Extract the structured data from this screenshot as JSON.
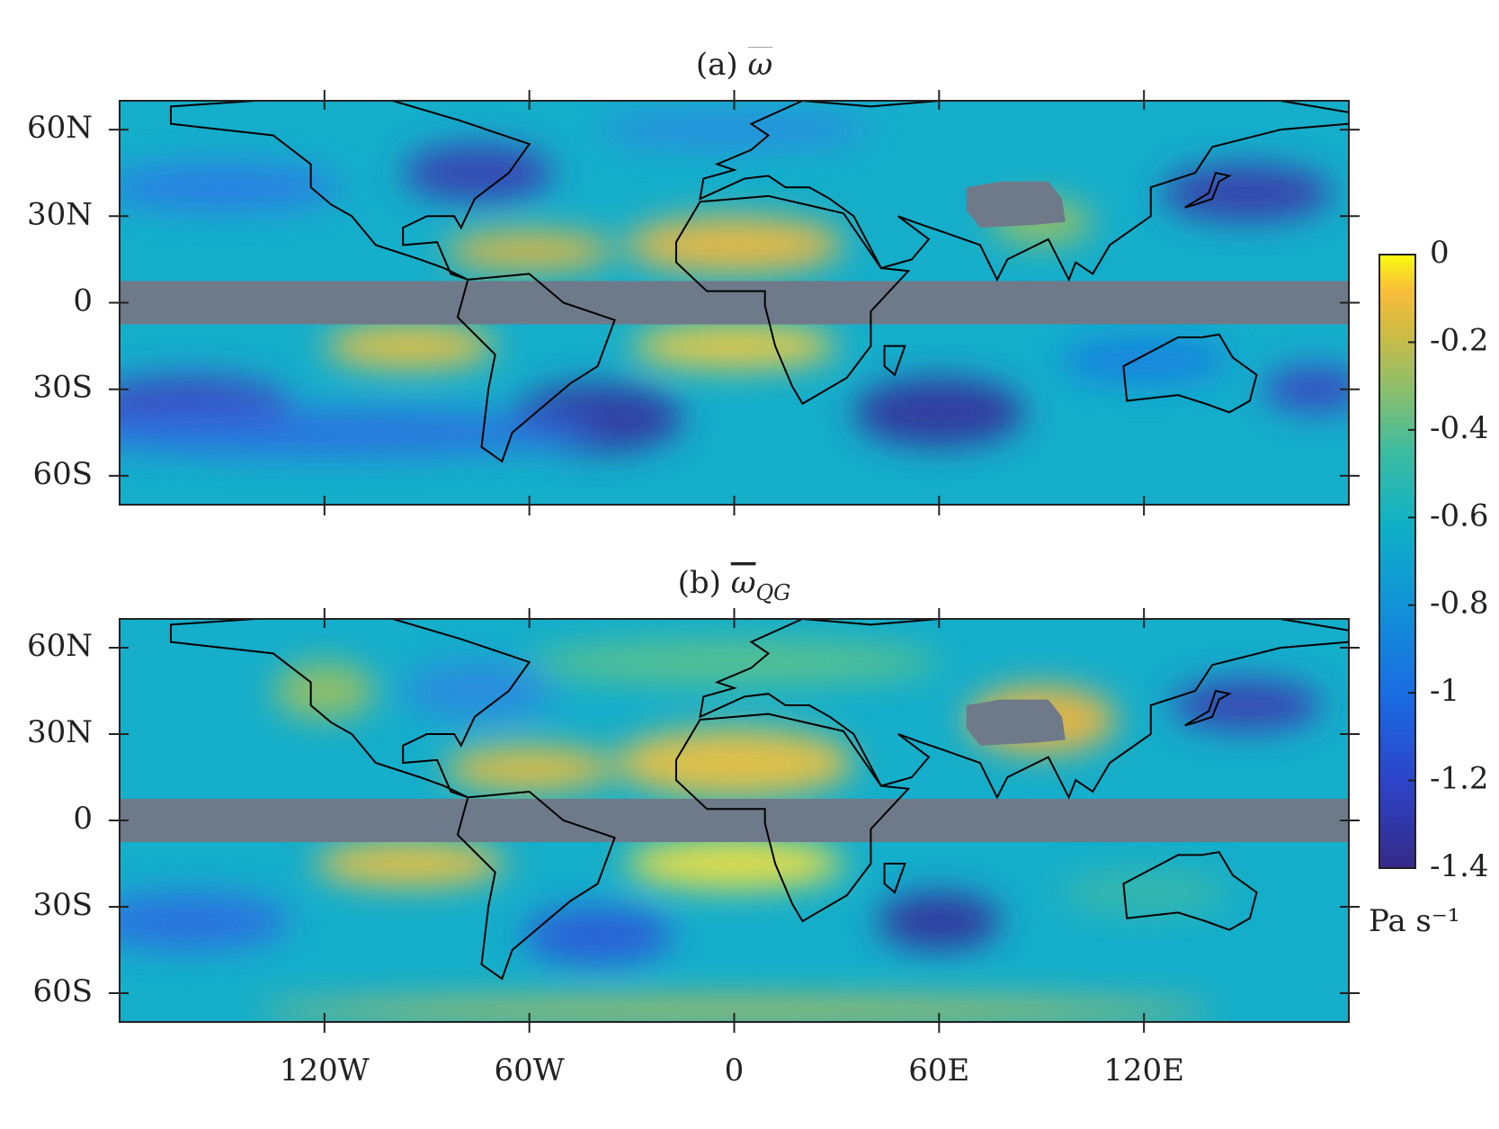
{
  "panels": [
    {
      "label": "(a)",
      "symbol": "ω"
    },
    {
      "label": "(b)",
      "symbol": "ω",
      "subscript": "QG"
    }
  ],
  "axes": {
    "xlim": [
      -180,
      180
    ],
    "ylim": [
      -70,
      70
    ],
    "xticks": [
      {
        "value": -120,
        "label": "120W"
      },
      {
        "value": -60,
        "label": "60W"
      },
      0,
      {
        "value": 60,
        "label": "60E"
      },
      {
        "value": 120,
        "label": "120E"
      }
    ],
    "yticks": [
      {
        "value": 60,
        "label": "60N"
      },
      {
        "value": 30,
        "label": "30N"
      },
      0,
      {
        "value": -30,
        "label": "30S"
      },
      {
        "value": -60,
        "label": "60S"
      }
    ]
  },
  "colorbar": {
    "clim": [
      -1.4,
      0
    ],
    "ticks": [
      0,
      -0.2,
      -0.4,
      -0.6,
      -0.8,
      -1,
      -1.2,
      -1.4
    ],
    "units": "Pa s⁻¹"
  }
}
